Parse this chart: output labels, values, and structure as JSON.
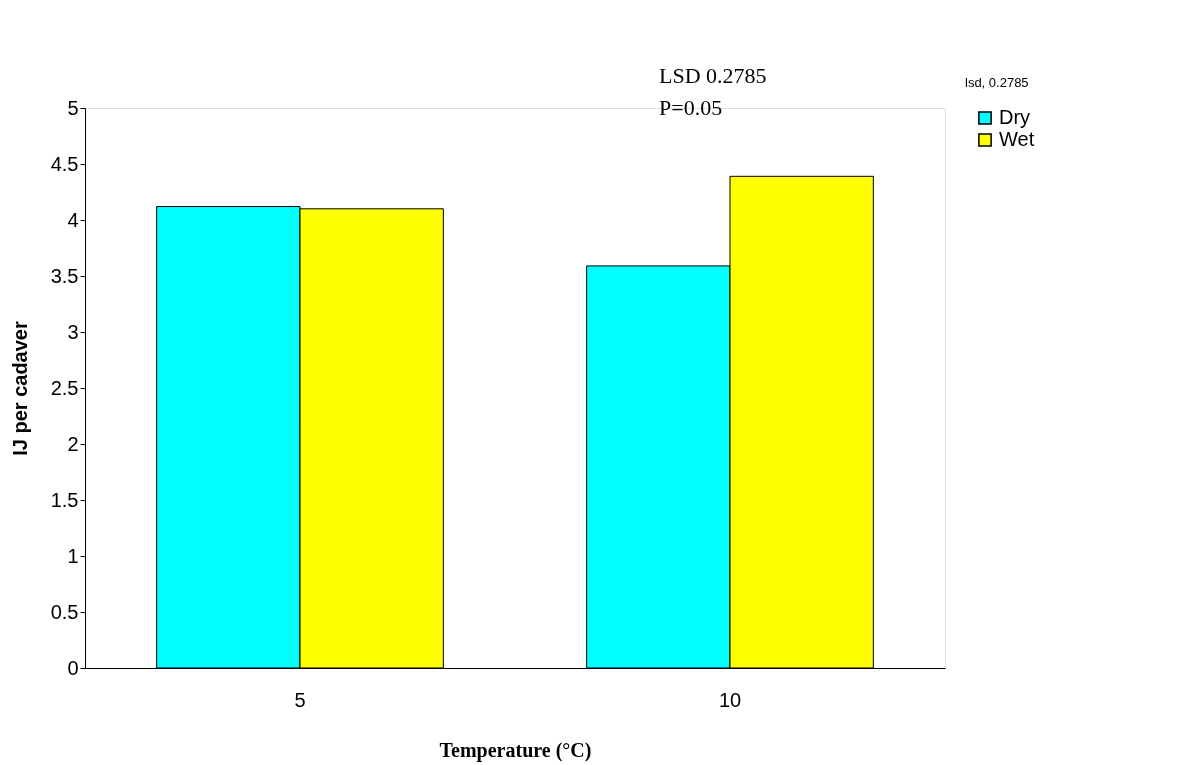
{
  "chart_data": {
    "type": "bar",
    "xlabel": "Temperature (°C)",
    "ylabel": "IJ per cadaver",
    "categories": [
      "5",
      "10"
    ],
    "series": [
      {
        "name": "Dry",
        "color": "#00ffff",
        "values": [
          4.12,
          3.59
        ]
      },
      {
        "name": "Wet",
        "color": "#ffff00",
        "values": [
          4.1,
          4.39
        ]
      }
    ],
    "ylim": [
      0,
      5
    ],
    "yticks": [
      0,
      0.5,
      1,
      1.5,
      2,
      2.5,
      3,
      3.5,
      4,
      4.5,
      5
    ],
    "grid": false,
    "legend": "right",
    "annotations": [
      "LSD 0.2785",
      "P=0.05",
      "lsd, 0.2785"
    ]
  }
}
